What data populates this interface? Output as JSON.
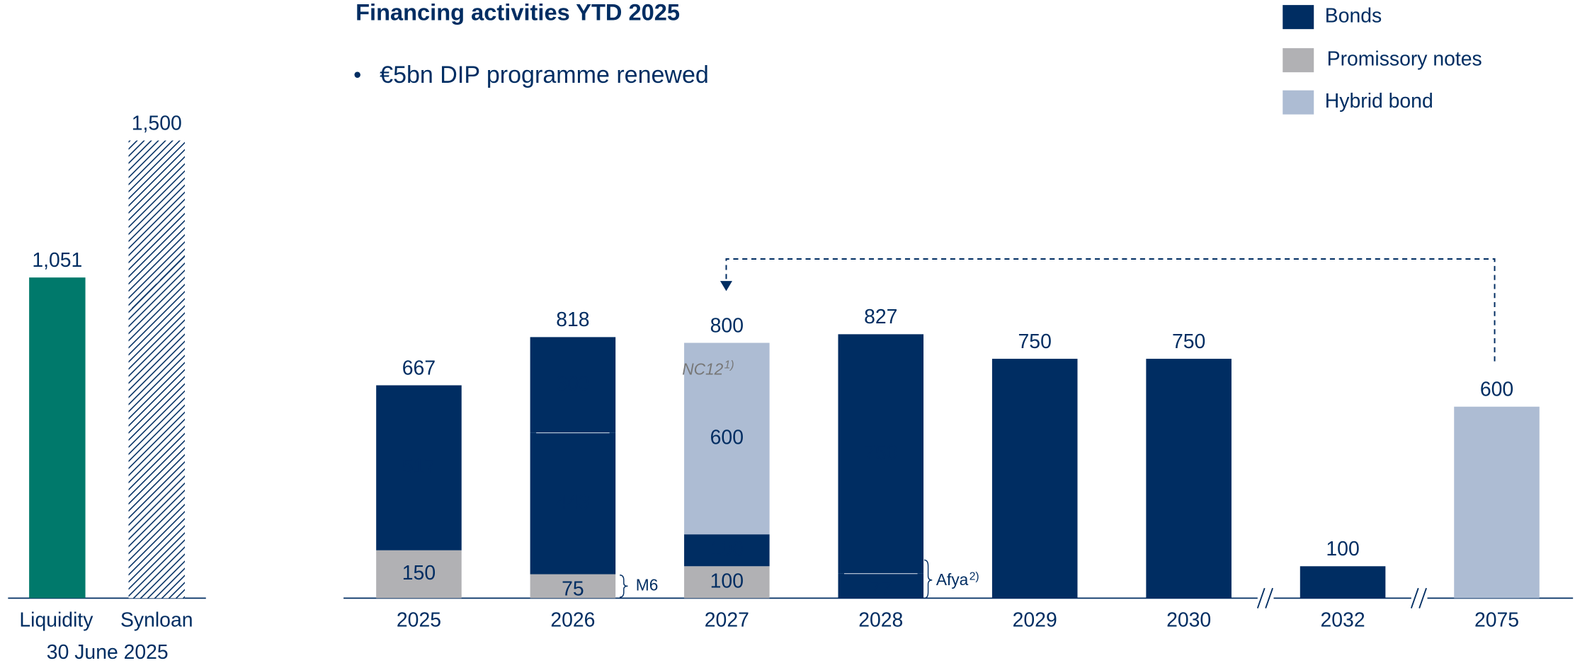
{
  "chart_data": [
    {
      "type": "bar",
      "categories": [
        "Liquidity",
        "Synloan"
      ],
      "values": [
        1051,
        1500
      ],
      "value_labels": [
        "1,051",
        "1,500"
      ],
      "subtitle": "30 June 2025",
      "colors": [
        "#00796B",
        "#002D62"
      ],
      "patterns": [
        null,
        "hatch"
      ],
      "ylim": [
        0,
        1500
      ]
    },
    {
      "type": "stacked_bar",
      "title": "Financing activities YTD 2025",
      "bullets": [
        "€5bn DIP programme renewed"
      ],
      "categories": [
        "2025",
        "2026",
        "2027",
        "2028",
        "2029",
        "2030",
        "2032",
        "2075"
      ],
      "series": [
        {
          "name": "Promissory notes",
          "color": "#B1B1B4",
          "values": [
            150,
            75,
            100,
            null,
            null,
            null,
            null,
            null
          ]
        },
        {
          "name": "Bonds",
          "color": "#002D62",
          "values": [
            517,
            443,
            100,
            77,
            750,
            750,
            100,
            null
          ]
        },
        {
          "color": "#002D62",
          "values": [
            null,
            300,
            null,
            750,
            null,
            null,
            null,
            null
          ]
        },
        {
          "name": "Hybrid bond",
          "color": "#ADBCD3",
          "values": [
            null,
            null,
            600,
            null,
            null,
            null,
            null,
            600
          ]
        }
      ],
      "totals": [
        667,
        818,
        800,
        827,
        750,
        750,
        100,
        600
      ],
      "annotations": [
        "M6",
        "Afya",
        "2)",
        "NC12",
        "1)"
      ],
      "ylim": [
        0,
        1000
      ]
    }
  ]
}
